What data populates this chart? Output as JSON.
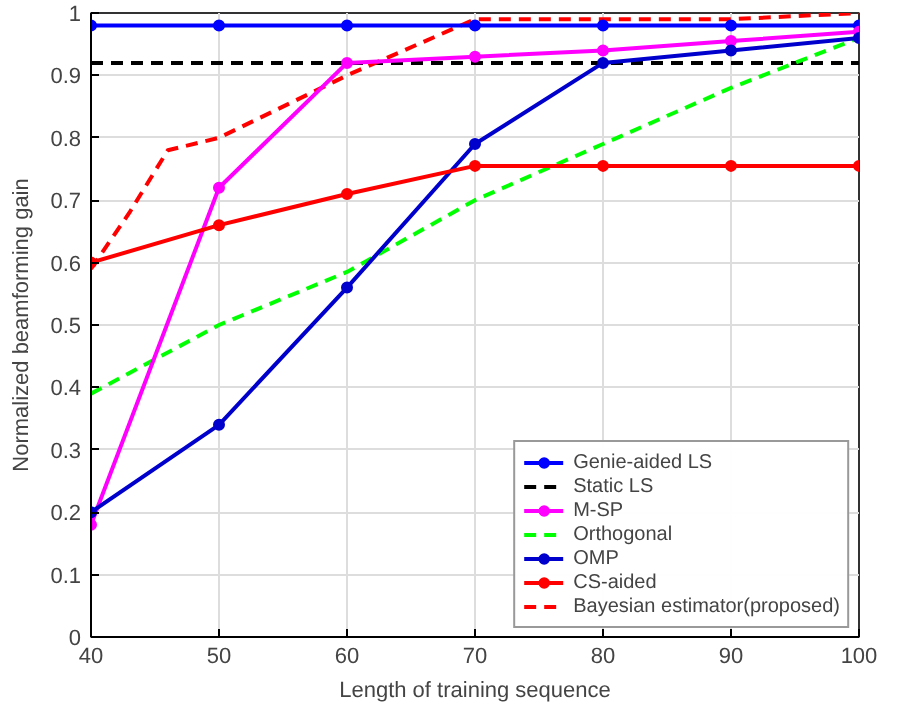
{
  "chart_data": {
    "type": "line",
    "xlabel": "Length of training sequence",
    "ylabel": "Normalized beamforming gain",
    "x": [
      40,
      50,
      60,
      70,
      80,
      90,
      100
    ],
    "xlim": [
      40,
      100
    ],
    "xticks": [
      40,
      50,
      60,
      70,
      80,
      90,
      100
    ],
    "ylim": [
      0,
      1
    ],
    "yticks": [
      0,
      0.1,
      0.2,
      0.3,
      0.4,
      0.5,
      0.6,
      0.7,
      0.8,
      0.9,
      1
    ],
    "grid": true,
    "legend": "bottom right",
    "series": [
      {
        "name": "Genie-aided LS",
        "color": "#0000ff",
        "marker": "circle",
        "line_style": "solid",
        "values": [
          0.98,
          0.98,
          0.98,
          0.98,
          0.98,
          0.98,
          0.98
        ]
      },
      {
        "name": "Static LS",
        "color": "#000000",
        "marker": "none",
        "line_style": "dashed",
        "values": [
          0.92,
          0.92,
          0.92,
          0.92,
          0.92,
          0.92,
          0.92
        ]
      },
      {
        "name": "M-SP",
        "color": "#ff00ff",
        "marker": "circle",
        "line_style": "solid",
        "values": [
          0.18,
          0.72,
          0.92,
          0.93,
          0.94,
          0.955,
          0.97
        ]
      },
      {
        "name": "Orthogonal",
        "color": "#00ff00",
        "marker": "none",
        "line_style": "dashed",
        "values": [
          0.39,
          0.5,
          0.585,
          0.7,
          0.79,
          0.88,
          0.96
        ]
      },
      {
        "name": "OMP",
        "color": "#0000cc",
        "marker": "circle",
        "line_style": "solid",
        "values": [
          0.2,
          0.34,
          0.56,
          0.79,
          0.92,
          0.94,
          0.96
        ]
      },
      {
        "name": "CS-aided",
        "color": "#ff0000",
        "marker": "circle",
        "line_style": "solid",
        "values": [
          0.6,
          0.66,
          0.71,
          0.755,
          0.755,
          0.755,
          0.755
        ]
      },
      {
        "name": "Bayesian estimator(proposed)",
        "color": "#ff0000",
        "marker": "none",
        "line_style": "dashed",
        "x": [
          40,
          43,
          46,
          50,
          60,
          70,
          80,
          90,
          100
        ],
        "values": [
          0.59,
          0.68,
          0.78,
          0.8,
          0.9,
          0.99,
          0.99,
          0.99,
          1.0
        ]
      }
    ]
  }
}
